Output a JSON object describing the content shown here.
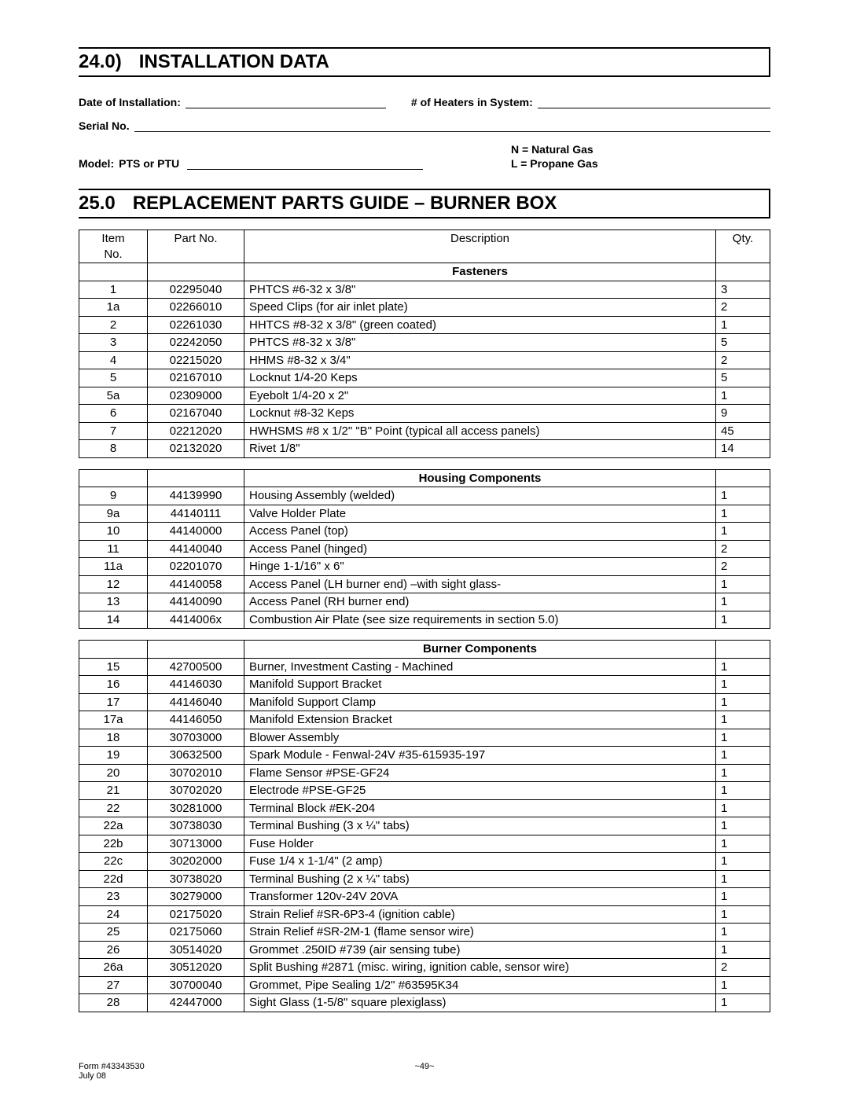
{
  "section24": {
    "num": "24.0)",
    "title": "INSTALLATION DATA"
  },
  "install": {
    "date_label": "Date of Installation:",
    "heaters_label": "# of Heaters in System:",
    "serial_label": "Serial No.",
    "model_label": "Model:",
    "model_value": "PTS or PTU",
    "gas_n": "N = Natural Gas",
    "gas_l": "L  = Propane Gas"
  },
  "section25": {
    "num": "25.0",
    "title": "REPLACEMENT PARTS GUIDE – BURNER BOX"
  },
  "table_head": {
    "item1": "Item",
    "item2": "No.",
    "part": "Part No.",
    "desc": "Description",
    "qty": "Qty."
  },
  "groups": {
    "fasteners": "Fasteners",
    "housing": "Housing Components",
    "burner": "Burner Components"
  },
  "fasteners": [
    {
      "item": "1",
      "part": "02295040",
      "desc": "PHTCS #6-32 x 3/8\"",
      "qty": "3"
    },
    {
      "item": "1a",
      "part": "02266010",
      "desc": "Speed Clips (for air inlet plate)",
      "qty": "2"
    },
    {
      "item": "2",
      "part": "02261030",
      "desc": "HHTCS #8-32 x 3/8\"  (green coated)",
      "qty": "1"
    },
    {
      "item": "3",
      "part": "02242050",
      "desc": "PHTCS #8-32 x 3/8\"",
      "qty": "5"
    },
    {
      "item": "4",
      "part": "02215020",
      "desc": "HHMS #8-32 x 3/4\"",
      "qty": "2"
    },
    {
      "item": "5",
      "part": "02167010",
      "desc": "Locknut 1/4-20 Keps",
      "qty": "5"
    },
    {
      "item": "5a",
      "part": "02309000",
      "desc": "Eyebolt 1/4-20 x 2\"",
      "qty": "1"
    },
    {
      "item": "6",
      "part": "02167040",
      "desc": "Locknut #8-32 Keps",
      "qty": "9"
    },
    {
      "item": "7",
      "part": "02212020",
      "desc": "HWHSMS #8 x 1/2\" \"B\" Point (typical all access panels)",
      "qty": "45"
    },
    {
      "item": "8",
      "part": "02132020",
      "desc": "Rivet 1/8\"",
      "qty": "14"
    }
  ],
  "housing": [
    {
      "item": "9",
      "part": "44139990",
      "desc": "Housing Assembly (welded)",
      "qty": "1"
    },
    {
      "item": "9a",
      "part": "44140111",
      "desc": "Valve Holder Plate",
      "qty": "1"
    },
    {
      "item": "10",
      "part": "44140000",
      "desc": "Access Panel (top)",
      "qty": "1"
    },
    {
      "item": "11",
      "part": "44140040",
      "desc": "Access Panel (hinged)",
      "qty": "2"
    },
    {
      "item": "11a",
      "part": "02201070",
      "desc": "Hinge 1-1/16\" x 6\"",
      "qty": "2"
    },
    {
      "item": "12",
      "part": "44140058",
      "desc": "Access Panel (LH burner end) –with sight glass-",
      "qty": "1"
    },
    {
      "item": "13",
      "part": "44140090",
      "desc": "Access Panel (RH burner end)",
      "qty": "1"
    },
    {
      "item": "14",
      "part": "4414006x",
      "desc": "Combustion Air Plate (see size requirements in section 5.0)",
      "qty": "1"
    }
  ],
  "burner": [
    {
      "item": "15",
      "part": "42700500",
      "desc": "Burner, Investment Casting -  Machined",
      "qty": "1"
    },
    {
      "item": "16",
      "part": "44146030",
      "desc": "Manifold Support Bracket",
      "qty": "1"
    },
    {
      "item": "17",
      "part": "44146040",
      "desc": "Manifold Support Clamp",
      "qty": "1"
    },
    {
      "item": "17a",
      "part": "44146050",
      "desc": "Manifold Extension Bracket",
      "qty": "1"
    },
    {
      "item": "18",
      "part": "30703000",
      "desc": "Blower Assembly",
      "qty": "1"
    },
    {
      "item": "19",
      "part": "30632500",
      "desc": "Spark Module - Fenwal-24V #35-615935-197",
      "qty": "1"
    },
    {
      "item": "20",
      "part": "30702010",
      "desc": "Flame Sensor #PSE-GF24",
      "qty": "1"
    },
    {
      "item": "21",
      "part": "30702020",
      "desc": "Electrode #PSE-GF25",
      "qty": "1"
    },
    {
      "item": "22",
      "part": "30281000",
      "desc": "Terminal Block #EK-204",
      "qty": "1"
    },
    {
      "item": "22a",
      "part": "30738030",
      "desc": "Terminal Bushing (3 x ¼\" tabs)",
      "qty": "1"
    },
    {
      "item": "22b",
      "part": "30713000",
      "desc": "Fuse Holder",
      "qty": "1"
    },
    {
      "item": "22c",
      "part": "30202000",
      "desc": "Fuse 1/4 x 1-1/4\"  (2 amp)",
      "qty": "1"
    },
    {
      "item": "22d",
      "part": "30738020",
      "desc": "Terminal Bushing (2 x ¼\" tabs)",
      "qty": "1"
    },
    {
      "item": "23",
      "part": "30279000",
      "desc": "Transformer 120v-24V  20VA",
      "qty": "1"
    },
    {
      "item": "24",
      "part": "02175020",
      "desc": "Strain Relief #SR-6P3-4 (ignition cable)",
      "qty": "1"
    },
    {
      "item": "25",
      "part": "02175060",
      "desc": "Strain Relief #SR-2M-1 (flame sensor wire)",
      "qty": "1"
    },
    {
      "item": "26",
      "part": "30514020",
      "desc": "Grommet .250ID #739 (air sensing tube)",
      "qty": "1"
    },
    {
      "item": "26a",
      "part": "30512020",
      "desc": "Split Bushing #2871 (misc. wiring, ignition cable, sensor wire)",
      "qty": "2"
    },
    {
      "item": "27",
      "part": "30700040",
      "desc": "Grommet, Pipe Sealing 1/2\"  #63595K34",
      "qty": "1"
    },
    {
      "item": "28",
      "part": "42447000",
      "desc": "Sight Glass (1-5/8\" square plexiglass)",
      "qty": "1"
    }
  ],
  "footer": {
    "form": "Form #43343530",
    "date": "July 08",
    "page": "~49~"
  }
}
